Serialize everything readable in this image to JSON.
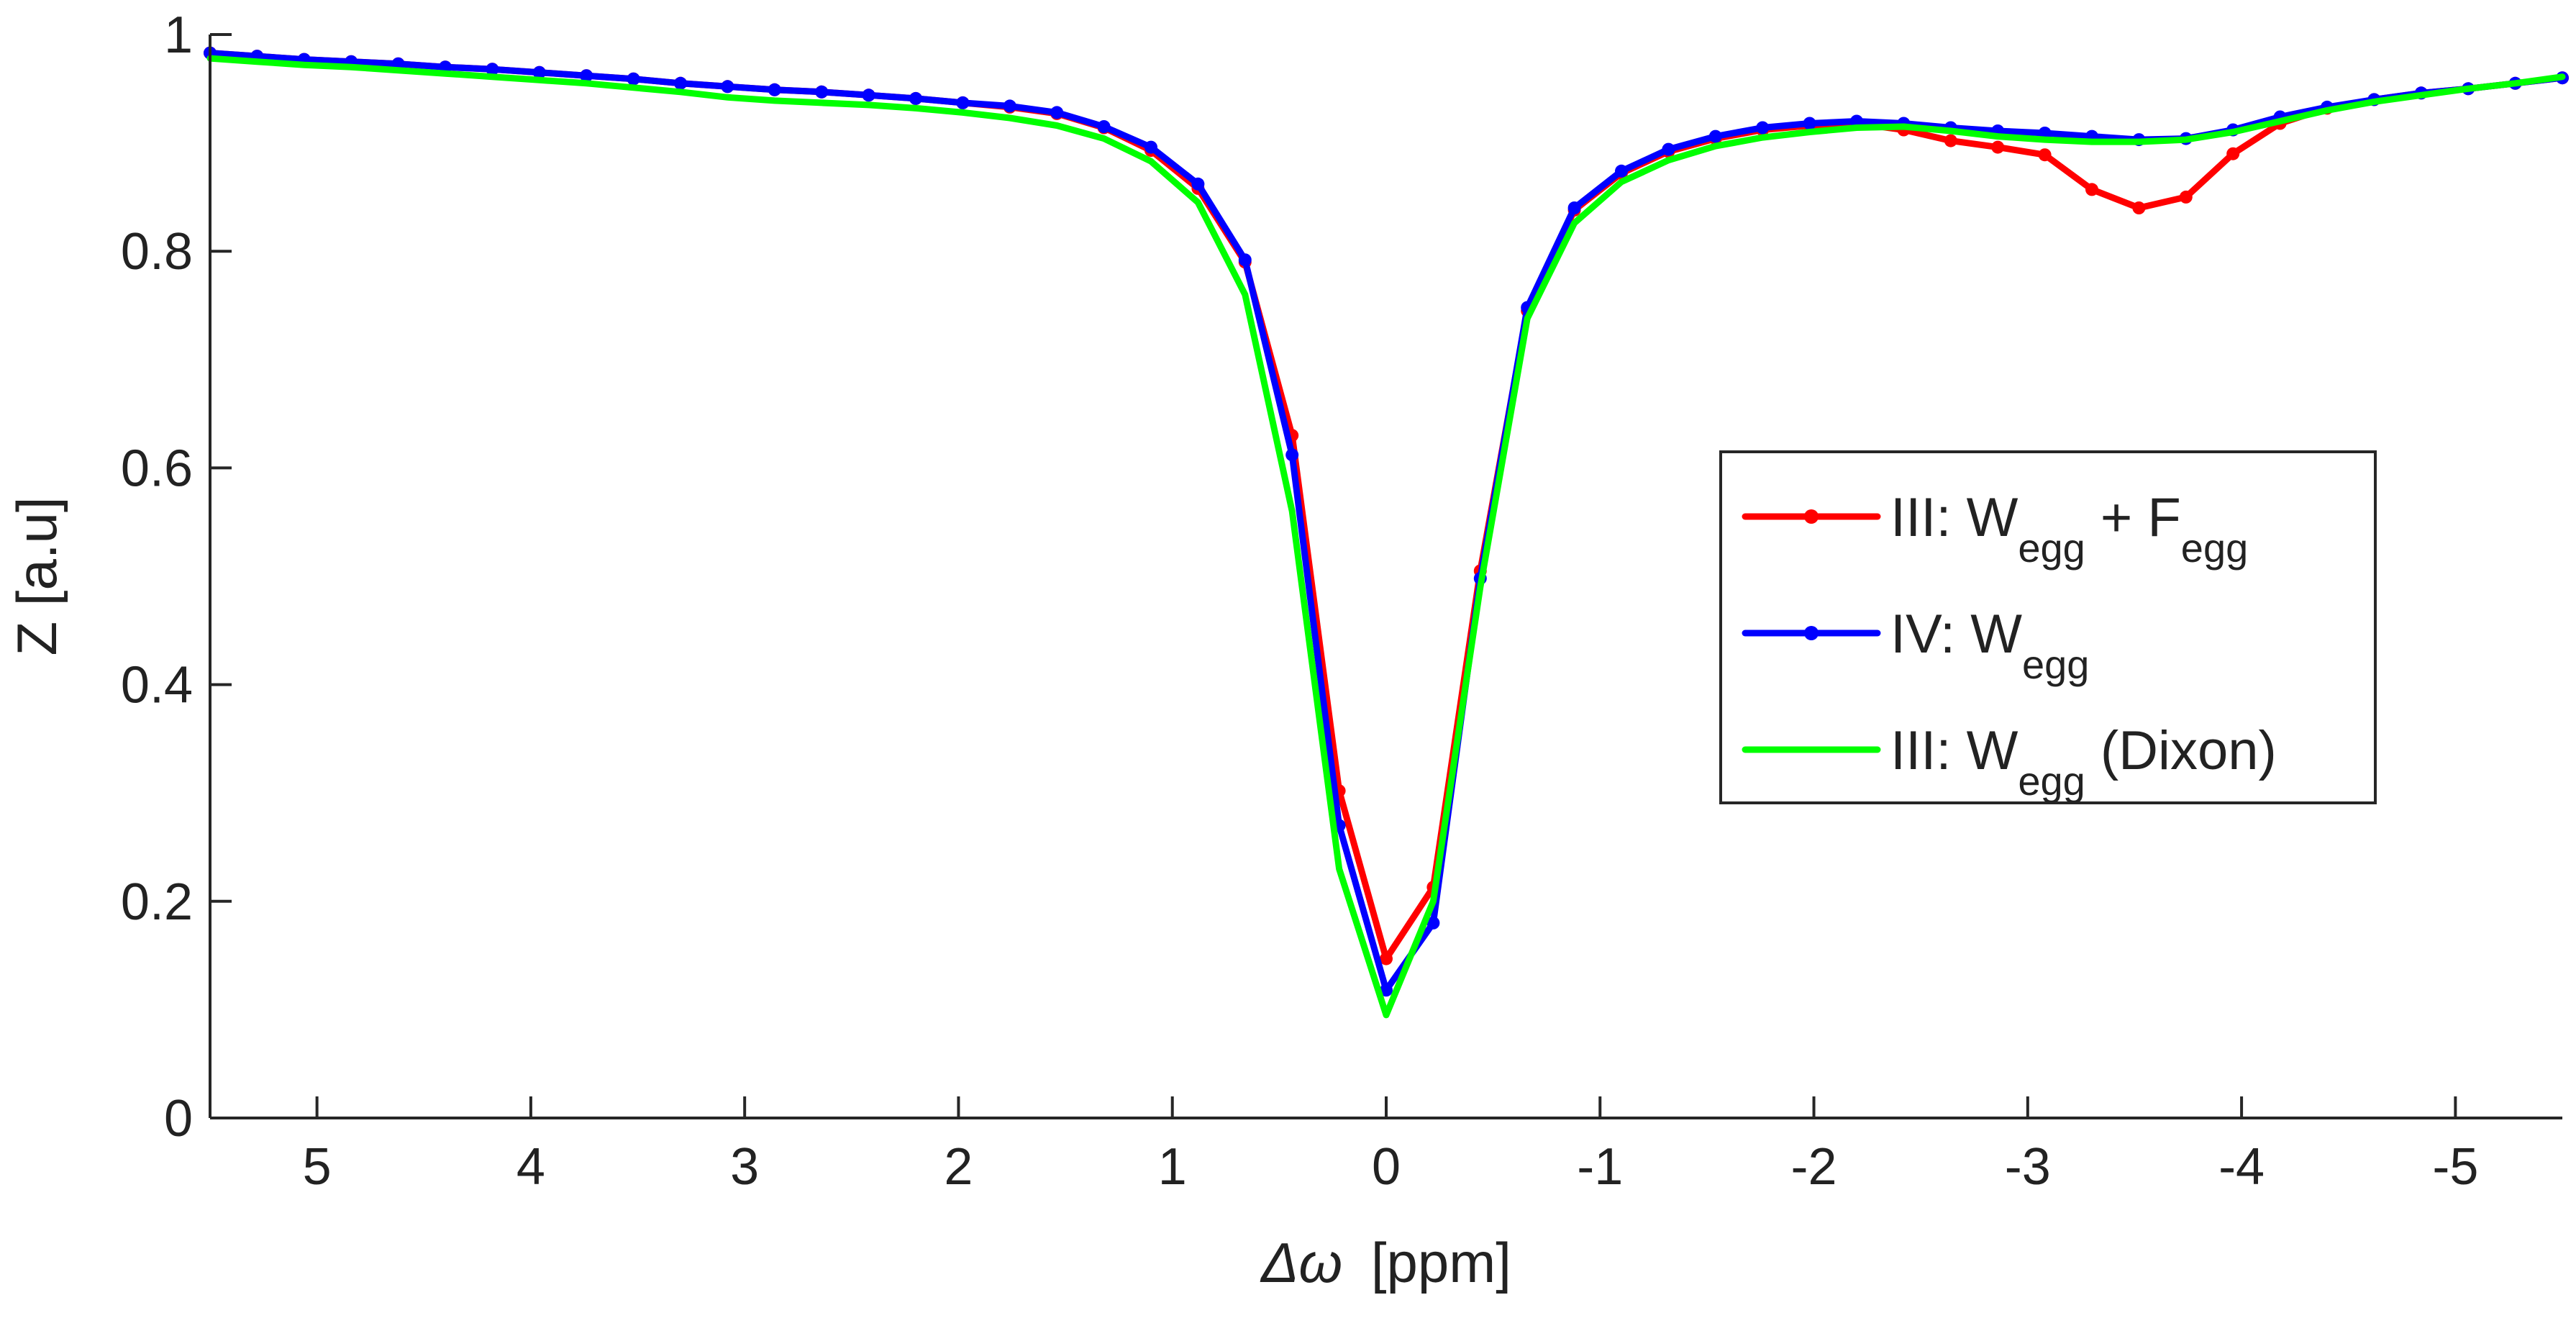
{
  "chart_data": {
    "type": "line",
    "title": "",
    "xlabel_symbol": "Δω",
    "xlabel_unit": "[ppm]",
    "ylabel": "Z [a.u]",
    "xlim": [
      5.5,
      -5.5
    ],
    "ylim": [
      0,
      1
    ],
    "x_reversed": true,
    "xticks": [
      5,
      4,
      3,
      2,
      1,
      0,
      -1,
      -2,
      -3,
      -4,
      -5
    ],
    "xtick_labels": [
      "5",
      "4",
      "3",
      "2",
      "1",
      "0",
      "-1",
      "-2",
      "-3",
      "-4",
      "-5"
    ],
    "yticks": [
      0,
      0.2,
      0.4,
      0.6,
      0.8,
      1
    ],
    "ytick_labels": [
      "0",
      "0.2",
      "0.4",
      "0.6",
      "0.8",
      "1"
    ],
    "grid": false,
    "legend_position": "center-right",
    "x": [
      5.5,
      5.28,
      5.06,
      4.84,
      4.62,
      4.4,
      4.18,
      3.96,
      3.74,
      3.52,
      3.3,
      3.08,
      2.86,
      2.64,
      2.42,
      2.2,
      1.98,
      1.76,
      1.54,
      1.32,
      1.1,
      0.88,
      0.66,
      0.44,
      0.22,
      0.0,
      -0.22,
      -0.44,
      -0.66,
      -0.88,
      -1.1,
      -1.32,
      -1.54,
      -1.76,
      -1.98,
      -2.2,
      -2.42,
      -2.64,
      -2.86,
      -3.08,
      -3.3,
      -3.52,
      -3.74,
      -3.96,
      -4.18,
      -4.4,
      -4.62,
      -4.84,
      -5.06,
      -5.28,
      -5.5
    ],
    "series": [
      {
        "name_main": "III: W",
        "name_sub": "egg",
        "name_mid": " + F",
        "name_sub2": "egg",
        "name_end": "",
        "color": "#ff0000",
        "markers": true,
        "values": [
          0.983,
          0.98,
          0.977,
          0.975,
          0.973,
          0.97,
          0.968,
          0.965,
          0.962,
          0.959,
          0.955,
          0.952,
          0.949,
          0.947,
          0.944,
          0.941,
          0.937,
          0.933,
          0.927,
          0.914,
          0.893,
          0.858,
          0.79,
          0.63,
          0.302,
          0.147,
          0.213,
          0.505,
          0.745,
          0.838,
          0.872,
          0.892,
          0.904,
          0.912,
          0.916,
          0.918,
          0.912,
          0.902,
          0.896,
          0.889,
          0.857,
          0.84,
          0.85,
          0.89,
          0.918,
          0.932,
          0.94,
          0.946,
          0.95,
          0.955,
          0.96
        ]
      },
      {
        "name_main": "IV: W",
        "name_sub": "egg",
        "name_mid": "",
        "name_sub2": "",
        "name_end": "",
        "color": "#0000ff",
        "markers": true,
        "values": [
          0.983,
          0.98,
          0.977,
          0.975,
          0.973,
          0.97,
          0.968,
          0.965,
          0.962,
          0.959,
          0.955,
          0.952,
          0.949,
          0.947,
          0.944,
          0.941,
          0.937,
          0.934,
          0.928,
          0.915,
          0.896,
          0.862,
          0.792,
          0.612,
          0.27,
          0.118,
          0.18,
          0.498,
          0.748,
          0.84,
          0.874,
          0.894,
          0.906,
          0.914,
          0.918,
          0.92,
          0.918,
          0.914,
          0.911,
          0.909,
          0.906,
          0.903,
          0.904,
          0.912,
          0.924,
          0.933,
          0.94,
          0.946,
          0.95,
          0.955,
          0.96
        ]
      },
      {
        "name_main": "III: W",
        "name_sub": "egg",
        "name_mid": "",
        "name_sub2": "",
        "name_end": " (Dixon)",
        "color": "#00ff00",
        "markers": false,
        "values": [
          0.978,
          0.975,
          0.972,
          0.97,
          0.967,
          0.964,
          0.961,
          0.958,
          0.955,
          0.951,
          0.947,
          0.942,
          0.939,
          0.937,
          0.935,
          0.932,
          0.928,
          0.923,
          0.916,
          0.904,
          0.883,
          0.845,
          0.76,
          0.56,
          0.23,
          0.095,
          0.2,
          0.49,
          0.738,
          0.826,
          0.864,
          0.884,
          0.897,
          0.905,
          0.91,
          0.914,
          0.915,
          0.911,
          0.906,
          0.903,
          0.901,
          0.901,
          0.903,
          0.91,
          0.92,
          0.93,
          0.938,
          0.944,
          0.95,
          0.955,
          0.961
        ]
      }
    ]
  }
}
